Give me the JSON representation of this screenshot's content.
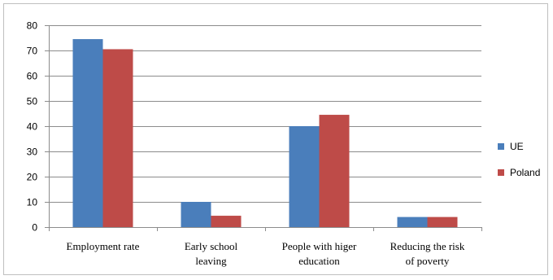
{
  "chart_data": {
    "type": "bar",
    "categories": [
      [
        "Employment rate"
      ],
      [
        "Early school",
        "leaving"
      ],
      [
        "People with higer",
        "education"
      ],
      [
        "Reducing the risk",
        "of poverty"
      ]
    ],
    "series": [
      {
        "name": "UE",
        "color": "#4a7ebb",
        "values": [
          74.5,
          10,
          40,
          4
        ]
      },
      {
        "name": "Poland",
        "color": "#be4b48",
        "values": [
          70.5,
          4.5,
          44.5,
          4
        ]
      }
    ],
    "ylim": [
      0,
      80
    ],
    "yticks": [
      0,
      10,
      20,
      30,
      40,
      50,
      60,
      70,
      80
    ],
    "grid": true,
    "legend_position": "right",
    "title": "",
    "xlabel": "",
    "ylabel": ""
  }
}
